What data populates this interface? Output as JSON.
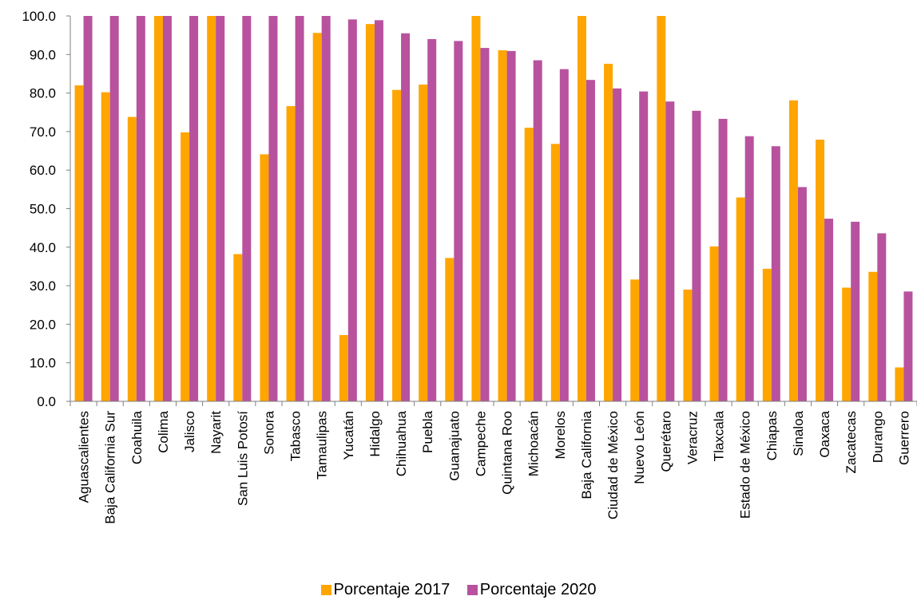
{
  "chart_data": {
    "type": "bar",
    "categories": [
      "Aguascalientes",
      "Baja California Sur",
      "Coahuila",
      "Colima",
      "Jalisco",
      "Nayarit",
      "San Luis Potosí",
      "Sonora",
      "Tabasco",
      "Tamaulipas",
      "Yucatán",
      "Hidalgo",
      "Chihuahua",
      "Puebla",
      "Guanajuato",
      "Campeche",
      "Quintana Roo",
      "Michoacán",
      "Morelos",
      "Baja California",
      "Ciudad de México",
      "Nuevo León",
      "Querétaro",
      "Veracruz",
      "Tlaxcala",
      "Estado de México",
      "Chiapas",
      "Sinaloa",
      "Oaxaca",
      "Zacatecas",
      "Durango",
      "Guerrero"
    ],
    "series": [
      {
        "name": "Porcentaje 2017",
        "color": "#FFA500",
        "values": [
          82.0,
          80.2,
          73.8,
          100.0,
          69.8,
          100.0,
          38.2,
          64.1,
          76.6,
          95.6,
          17.2,
          97.9,
          80.8,
          82.2,
          37.2,
          100.0,
          91.1,
          71.0,
          66.8,
          100.0,
          87.6,
          31.6,
          100.0,
          29.0,
          40.2,
          52.9,
          34.4,
          78.1,
          67.9,
          29.5,
          33.6,
          8.8
        ]
      },
      {
        "name": "Porcentaje 2020",
        "color": "#B8529E",
        "values": [
          100.0,
          100.0,
          100.0,
          100.0,
          100.0,
          100.0,
          100.0,
          100.0,
          100.0,
          100.0,
          99.1,
          98.9,
          95.5,
          94.0,
          93.5,
          91.7,
          90.9,
          88.5,
          86.2,
          83.4,
          81.2,
          80.4,
          77.8,
          75.4,
          73.3,
          68.8,
          66.2,
          55.6,
          47.4,
          46.6,
          43.6,
          28.5
        ]
      }
    ],
    "yticks": [
      "0.0",
      "10.0",
      "20.0",
      "30.0",
      "40.0",
      "50.0",
      "60.0",
      "70.0",
      "80.0",
      "90.0",
      "100.0"
    ],
    "ylim": [
      0,
      100
    ],
    "legend_position": "bottom",
    "grid": false
  }
}
